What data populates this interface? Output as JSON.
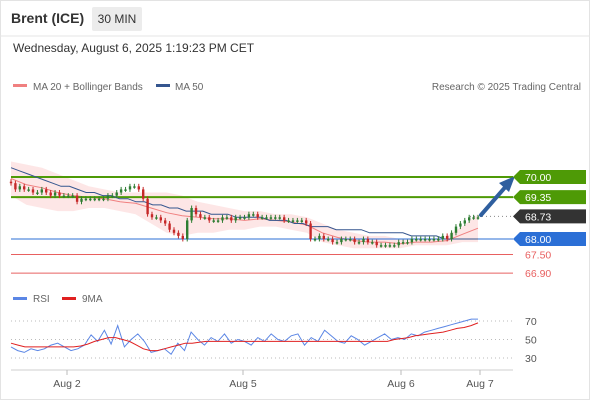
{
  "header": {
    "symbol": "Brent (ICE)",
    "timeframe": "30 MIN",
    "timestamp": "Wednesday, August 6, 2025 1:19:23 PM CET"
  },
  "legend": {
    "bollinger": "MA 20 + Bollinger Bands",
    "ma50": "MA 50",
    "credit": "Research © 2025 Trading Central",
    "rsi": "RSI",
    "rsi_ma": "9MA"
  },
  "colors": {
    "resistance": "#4e9a06",
    "pivot": "#2b6fd6",
    "support": "#e86060",
    "last": "#333333",
    "ma50": "#35568f",
    "bollinger": "#f08080",
    "up": "#2e7d32",
    "down": "#c62828",
    "arrow": "#2f5f9f",
    "rsi": "#5b86e5",
    "rsi_ma": "#e02020"
  },
  "price_levels": [
    {
      "label": "70.00",
      "value": 70.0,
      "kind": "resistance"
    },
    {
      "label": "69.35",
      "value": 69.35,
      "kind": "resistance"
    },
    {
      "label": "68.73",
      "value": 68.73,
      "kind": "last"
    },
    {
      "label": "68.00",
      "value": 68.0,
      "kind": "pivot"
    },
    {
      "label": "67.50",
      "value": 67.5,
      "kind": "support"
    },
    {
      "label": "66.90",
      "value": 66.9,
      "kind": "support"
    }
  ],
  "rsi_levels": [
    {
      "label": "70",
      "value": 70
    },
    {
      "label": "50",
      "value": 50
    },
    {
      "label": "30",
      "value": 30
    }
  ],
  "x_ticks": [
    "Aug 2",
    "Aug 5",
    "Aug 6",
    "Aug 7"
  ],
  "chart_data": {
    "type": "line",
    "price_close": [
      69.8,
      69.6,
      69.7,
      69.6,
      69.6,
      69.5,
      69.5,
      69.6,
      69.5,
      69.4,
      69.5,
      69.4,
      69.4,
      69.4,
      69.4,
      69.2,
      69.3,
      69.3,
      69.3,
      69.3,
      69.3,
      69.3,
      69.4,
      69.4,
      69.5,
      69.6,
      69.6,
      69.7,
      69.7,
      69.6,
      69.3,
      68.8,
      68.7,
      68.7,
      68.6,
      68.5,
      68.3,
      68.2,
      68.1,
      68.0,
      68.6,
      69.0,
      68.8,
      68.7,
      68.7,
      68.6,
      68.6,
      68.6,
      68.7,
      68.7,
      68.6,
      68.7,
      68.7,
      68.7,
      68.8,
      68.8,
      68.7,
      68.7,
      68.7,
      68.7,
      68.7,
      68.7,
      68.6,
      68.6,
      68.6,
      68.6,
      68.6,
      68.5,
      68.0,
      68.0,
      68.1,
      68.0,
      68.0,
      67.9,
      67.9,
      68.0,
      68.0,
      68.0,
      67.9,
      67.9,
      68.0,
      67.9,
      67.9,
      67.8,
      67.8,
      67.8,
      67.8,
      67.8,
      67.9,
      67.9,
      67.9,
      68.0,
      68.0,
      68.0,
      68.0,
      68.0,
      68.0,
      68.0,
      68.1,
      68.0,
      68.2,
      68.4,
      68.5,
      68.6,
      68.7,
      68.7,
      68.7
    ],
    "ma50": [
      70.3,
      70.2,
      70.1,
      70.0,
      69.9,
      69.8,
      69.7,
      69.7,
      69.6,
      69.5,
      69.5,
      69.4,
      69.4,
      69.3,
      69.3,
      69.2,
      69.2,
      69.1,
      69.1,
      69.0,
      69.0,
      68.9,
      68.9,
      68.9,
      68.8,
      68.8,
      68.8,
      68.7,
      68.7,
      68.7,
      68.7,
      68.6,
      68.6,
      68.6,
      68.5,
      68.5,
      68.4,
      68.4,
      68.4,
      68.3,
      68.3,
      68.3,
      68.3,
      68.2,
      68.2,
      68.2,
      68.2,
      68.2,
      68.1,
      68.1,
      68.1,
      68.1,
      68.0,
      68.0,
      68.0,
      68.0,
      68.0
    ],
    "bollinger_upper": [
      70.5,
      70.4,
      70.3,
      70.1,
      69.9,
      69.7,
      69.6,
      69.5,
      69.5,
      69.5,
      69.5,
      69.4,
      69.2,
      69.1,
      69.0,
      68.9,
      68.9,
      68.8,
      68.8,
      68.7,
      68.5,
      68.3,
      68.2,
      68.1,
      68.1,
      68.0,
      68.0,
      68.0,
      68.1,
      68.4,
      68.8
    ],
    "bollinger_lower": [
      69.4,
      69.1,
      69.0,
      68.9,
      68.9,
      69.0,
      69.0,
      68.9,
      68.8,
      68.5,
      68.2,
      68.1,
      68.2,
      68.2,
      68.3,
      68.3,
      68.4,
      68.4,
      68.3,
      68.2,
      67.9,
      67.8,
      67.7,
      67.7,
      67.7,
      67.7,
      67.8,
      67.8,
      67.8,
      67.9,
      67.9
    ],
    "rsi": [
      42,
      38,
      36,
      40,
      38,
      40,
      44,
      46,
      42,
      38,
      40,
      44,
      55,
      48,
      60,
      45,
      65,
      42,
      50,
      56,
      48,
      36,
      38,
      40,
      34,
      46,
      38,
      58,
      50,
      44,
      52,
      48,
      56,
      46,
      50,
      48,
      44,
      52,
      48,
      56,
      50,
      48,
      54,
      56,
      44,
      52,
      48,
      60,
      54,
      48,
      46,
      54,
      50,
      44,
      48,
      52,
      56,
      50,
      52,
      50,
      56,
      54,
      58,
      60,
      62,
      64,
      66,
      68,
      70,
      72,
      72
    ],
    "rsi_ma": [
      46,
      44,
      42,
      42,
      42,
      42,
      42,
      42,
      42,
      42,
      43,
      45,
      48,
      50,
      52,
      52,
      50,
      48,
      44,
      40,
      38,
      38,
      40,
      42,
      44,
      46,
      46,
      47,
      48,
      48,
      48,
      48,
      48,
      48,
      48,
      48,
      48,
      48,
      48,
      48,
      48,
      48,
      48,
      48,
      48,
      48,
      48,
      48,
      48,
      48,
      48,
      48,
      48,
      48,
      48,
      50,
      51,
      52,
      54,
      55,
      56,
      57,
      58,
      60,
      62,
      63,
      65,
      68
    ],
    "rsi_range": [
      15,
      85
    ],
    "price_range": [
      66.6,
      70.9
    ]
  }
}
